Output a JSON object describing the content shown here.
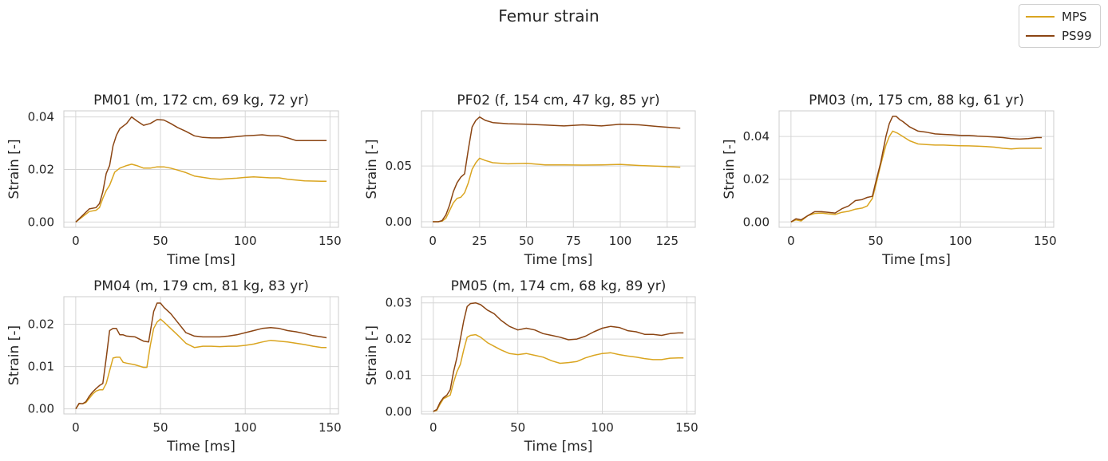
{
  "figure_title": "Femur strain",
  "legend": [
    {
      "label": "MPS",
      "color": "#DAA520"
    },
    {
      "label": "PS99",
      "color": "#8B4513"
    }
  ],
  "chart_data": [
    {
      "type": "line",
      "title": "PM01 (m, 172 cm, 69 kg, 72 yr)",
      "xlabel": "Time [ms]",
      "ylabel": "Strain [-]",
      "xlim": [
        -7,
        155
      ],
      "ylim": [
        -0.002,
        0.0423
      ],
      "xticks": [
        0,
        50,
        100,
        150
      ],
      "xtick_labels": [
        "0",
        "50",
        "100",
        "150"
      ],
      "yticks": [
        0,
        0.02,
        0.04
      ],
      "ytick_labels": [
        "0.00",
        "0.02",
        "0.04"
      ],
      "grid": true,
      "series": [
        {
          "name": "MPS",
          "color": "#DAA520",
          "x": [
            0,
            4,
            8,
            12,
            14,
            16,
            18,
            20,
            23,
            26,
            30,
            33,
            36,
            40,
            44,
            48,
            52,
            56,
            60,
            65,
            70,
            75,
            80,
            85,
            90,
            95,
            100,
            105,
            110,
            115,
            120,
            125,
            130,
            135,
            140,
            145,
            148
          ],
          "y": [
            0,
            0.002,
            0.004,
            0.0045,
            0.0055,
            0.009,
            0.012,
            0.014,
            0.019,
            0.0205,
            0.0215,
            0.022,
            0.0215,
            0.0205,
            0.0205,
            0.021,
            0.021,
            0.0205,
            0.0198,
            0.0188,
            0.0175,
            0.017,
            0.0165,
            0.0163,
            0.0165,
            0.0167,
            0.017,
            0.0172,
            0.017,
            0.0168,
            0.0168,
            0.0163,
            0.016,
            0.0157,
            0.0156,
            0.0155,
            0.0155
          ]
        },
        {
          "name": "PS99",
          "color": "#8B4513",
          "x": [
            0,
            4,
            8,
            12,
            14,
            16,
            18,
            20,
            22,
            24,
            26,
            30,
            33,
            36,
            40,
            44,
            48,
            52,
            56,
            60,
            65,
            70,
            75,
            80,
            85,
            90,
            95,
            100,
            105,
            110,
            115,
            120,
            125,
            130,
            135,
            140,
            145,
            148
          ],
          "y": [
            0,
            0.0025,
            0.005,
            0.0055,
            0.007,
            0.0115,
            0.0185,
            0.0215,
            0.029,
            0.033,
            0.0355,
            0.0375,
            0.04,
            0.0385,
            0.0368,
            0.0375,
            0.039,
            0.0388,
            0.0375,
            0.036,
            0.0345,
            0.0328,
            0.0322,
            0.032,
            0.032,
            0.0322,
            0.0325,
            0.0328,
            0.033,
            0.0332,
            0.0328,
            0.0328,
            0.032,
            0.031,
            0.031,
            0.031,
            0.031,
            0.031
          ]
        }
      ]
    },
    {
      "type": "line",
      "title": "PF02 (f, 154 cm, 47 kg, 85 yr)",
      "xlabel": "Time [ms]",
      "ylabel": "Strain [-]",
      "xlim": [
        -6,
        140
      ],
      "ylim": [
        -0.005,
        0.0995
      ],
      "xticks": [
        0,
        25,
        50,
        75,
        100,
        125
      ],
      "xtick_labels": [
        "0",
        "25",
        "50",
        "75",
        "100",
        "125"
      ],
      "yticks": [
        0,
        0.05
      ],
      "ytick_labels": [
        "0.00",
        "0.05"
      ],
      "grid": true,
      "series": [
        {
          "name": "MPS",
          "color": "#DAA520",
          "x": [
            0,
            3,
            5,
            7,
            9,
            11,
            13,
            15,
            17,
            19,
            21,
            23,
            25,
            28,
            32,
            40,
            50,
            60,
            70,
            80,
            90,
            100,
            110,
            120,
            132
          ],
          "y": [
            0,
            0.0,
            0.0005,
            0.003,
            0.01,
            0.017,
            0.021,
            0.022,
            0.026,
            0.035,
            0.047,
            0.053,
            0.057,
            0.055,
            0.053,
            0.052,
            0.0525,
            0.051,
            0.051,
            0.0508,
            0.051,
            0.0515,
            0.0505,
            0.0498,
            0.049
          ]
        },
        {
          "name": "PS99",
          "color": "#8B4513",
          "x": [
            0,
            3,
            5,
            7,
            9,
            11,
            13,
            15,
            17,
            19,
            21,
            23,
            25,
            28,
            32,
            40,
            50,
            60,
            70,
            80,
            90,
            100,
            110,
            120,
            132
          ],
          "y": [
            0,
            0.0,
            0.001,
            0.006,
            0.015,
            0.027,
            0.035,
            0.04,
            0.043,
            0.065,
            0.085,
            0.091,
            0.094,
            0.091,
            0.089,
            0.088,
            0.0875,
            0.0868,
            0.086,
            0.087,
            0.086,
            0.0875,
            0.087,
            0.0855,
            0.084
          ]
        }
      ]
    },
    {
      "type": "line",
      "title": "PM03 (m, 175 cm, 88 kg, 61 yr)",
      "xlabel": "Time [ms]",
      "ylabel": "Strain [-]",
      "xlim": [
        -7,
        155
      ],
      "ylim": [
        -0.0025,
        0.052
      ],
      "xticks": [
        0,
        50,
        100,
        150
      ],
      "xtick_labels": [
        "0",
        "50",
        "100",
        "150"
      ],
      "yticks": [
        0,
        0.02,
        0.04
      ],
      "ytick_labels": [
        "0.00",
        "0.02",
        "0.04"
      ],
      "grid": true,
      "series": [
        {
          "name": "MPS",
          "color": "#DAA520",
          "x": [
            0,
            3,
            6,
            10,
            14,
            18,
            22,
            26,
            30,
            34,
            38,
            42,
            45,
            48,
            50,
            53,
            56,
            58,
            60,
            63,
            66,
            70,
            75,
            80,
            85,
            90,
            95,
            100,
            105,
            110,
            115,
            120,
            125,
            130,
            135,
            140,
            145,
            148
          ],
          "y": [
            0,
            0.001,
            0.0005,
            0.003,
            0.004,
            0.0042,
            0.0038,
            0.0035,
            0.0045,
            0.005,
            0.006,
            0.0065,
            0.0075,
            0.011,
            0.017,
            0.027,
            0.036,
            0.04,
            0.0425,
            0.0415,
            0.04,
            0.038,
            0.0365,
            0.0362,
            0.036,
            0.036,
            0.0358,
            0.0357,
            0.0356,
            0.0355,
            0.0353,
            0.035,
            0.0345,
            0.0342,
            0.0345,
            0.0345,
            0.0345,
            0.0345
          ]
        },
        {
          "name": "PS99",
          "color": "#8B4513",
          "x": [
            0,
            3,
            6,
            10,
            14,
            18,
            22,
            26,
            30,
            34,
            38,
            42,
            45,
            48,
            50,
            53,
            56,
            58,
            60,
            62,
            64,
            66,
            70,
            75,
            80,
            85,
            90,
            95,
            100,
            105,
            110,
            115,
            120,
            125,
            130,
            135,
            140,
            145,
            148
          ],
          "y": [
            0,
            0.0015,
            0.001,
            0.003,
            0.0048,
            0.0048,
            0.0045,
            0.0042,
            0.0062,
            0.0075,
            0.01,
            0.0105,
            0.0115,
            0.012,
            0.0185,
            0.028,
            0.04,
            0.046,
            0.0495,
            0.0495,
            0.048,
            0.047,
            0.0445,
            0.0425,
            0.042,
            0.0412,
            0.041,
            0.0408,
            0.0405,
            0.0405,
            0.0402,
            0.04,
            0.0398,
            0.0395,
            0.039,
            0.0388,
            0.039,
            0.0395,
            0.0395
          ]
        }
      ]
    },
    {
      "type": "line",
      "title": "PM04 (m, 179 cm, 81 kg, 83 yr)",
      "xlabel": "Time [ms]",
      "ylabel": "Strain [-]",
      "xlim": [
        -7,
        155
      ],
      "ylim": [
        -0.0012,
        0.0265
      ],
      "xticks": [
        0,
        50,
        100,
        150
      ],
      "xtick_labels": [
        "0",
        "50",
        "100",
        "150"
      ],
      "yticks": [
        0,
        0.01,
        0.02
      ],
      "ytick_labels": [
        "0.00",
        "0.01",
        "0.02"
      ],
      "grid": true,
      "series": [
        {
          "name": "MPS",
          "color": "#DAA520",
          "x": [
            0,
            2,
            4,
            6,
            8,
            10,
            12,
            14,
            16,
            18,
            20,
            22,
            24,
            26,
            28,
            30,
            35,
            40,
            42,
            44,
            46,
            48,
            50,
            52,
            56,
            60,
            65,
            70,
            75,
            80,
            85,
            90,
            95,
            100,
            105,
            110,
            115,
            120,
            125,
            130,
            135,
            140,
            145,
            148
          ],
          "y": [
            0,
            0.0012,
            0.0012,
            0.0015,
            0.0025,
            0.0035,
            0.0042,
            0.0045,
            0.0045,
            0.006,
            0.009,
            0.012,
            0.0122,
            0.0122,
            0.011,
            0.0108,
            0.0104,
            0.0098,
            0.0098,
            0.015,
            0.019,
            0.0205,
            0.0212,
            0.0205,
            0.019,
            0.0175,
            0.0155,
            0.0145,
            0.0148,
            0.0148,
            0.0147,
            0.0148,
            0.0148,
            0.015,
            0.0153,
            0.0158,
            0.0162,
            0.016,
            0.0158,
            0.0155,
            0.0152,
            0.0148,
            0.0145,
            0.0145
          ]
        },
        {
          "name": "PS99",
          "color": "#8B4513",
          "x": [
            0,
            2,
            4,
            6,
            8,
            10,
            12,
            14,
            16,
            18,
            20,
            22,
            24,
            26,
            28,
            30,
            35,
            40,
            43,
            46,
            48,
            50,
            52,
            56,
            60,
            65,
            70,
            75,
            80,
            85,
            90,
            95,
            100,
            105,
            110,
            115,
            120,
            125,
            130,
            135,
            140,
            145,
            148
          ],
          "y": [
            0,
            0.0013,
            0.0012,
            0.0017,
            0.003,
            0.004,
            0.0048,
            0.0055,
            0.006,
            0.012,
            0.0185,
            0.019,
            0.019,
            0.0175,
            0.0175,
            0.0172,
            0.017,
            0.016,
            0.0158,
            0.023,
            0.025,
            0.025,
            0.024,
            0.0225,
            0.0205,
            0.018,
            0.0172,
            0.017,
            0.017,
            0.017,
            0.0172,
            0.0175,
            0.018,
            0.0185,
            0.019,
            0.0192,
            0.019,
            0.0185,
            0.0182,
            0.0178,
            0.0173,
            0.017,
            0.0168
          ]
        }
      ]
    },
    {
      "type": "line",
      "title": "PM05 (m, 174 cm, 68 kg, 89 yr)",
      "xlabel": "Time [ms]",
      "ylabel": "Strain [-]",
      "xlim": [
        -7,
        155
      ],
      "ylim": [
        -0.0007,
        0.0317
      ],
      "xticks": [
        0,
        50,
        100,
        150
      ],
      "xtick_labels": [
        "0",
        "50",
        "100",
        "150"
      ],
      "yticks": [
        0,
        0.01,
        0.02,
        0.03
      ],
      "ytick_labels": [
        "0.00",
        "0.01",
        "0.02",
        "0.03"
      ],
      "grid": true,
      "series": [
        {
          "name": "MPS",
          "color": "#DAA520",
          "x": [
            0,
            2,
            4,
            6,
            8,
            10,
            12,
            14,
            16,
            18,
            20,
            22,
            25,
            28,
            32,
            36,
            40,
            45,
            50,
            55,
            60,
            65,
            70,
            75,
            80,
            85,
            90,
            95,
            100,
            105,
            110,
            115,
            120,
            125,
            130,
            135,
            140,
            145,
            148
          ],
          "y": [
            0,
            0.0003,
            0.002,
            0.0035,
            0.004,
            0.0045,
            0.008,
            0.011,
            0.013,
            0.017,
            0.0205,
            0.021,
            0.0212,
            0.0205,
            0.019,
            0.018,
            0.017,
            0.016,
            0.0157,
            0.016,
            0.0155,
            0.015,
            0.014,
            0.0133,
            0.0135,
            0.0138,
            0.0148,
            0.0155,
            0.016,
            0.0162,
            0.0157,
            0.0153,
            0.015,
            0.0146,
            0.0143,
            0.0143,
            0.0147,
            0.0148,
            0.0148
          ]
        },
        {
          "name": "PS99",
          "color": "#8B4513",
          "x": [
            0,
            2,
            4,
            6,
            8,
            10,
            12,
            14,
            16,
            18,
            20,
            22,
            25,
            28,
            32,
            36,
            40,
            45,
            50,
            55,
            60,
            65,
            70,
            75,
            80,
            85,
            90,
            95,
            100,
            105,
            110,
            115,
            120,
            125,
            130,
            135,
            140,
            145,
            148
          ],
          "y": [
            0,
            0.0005,
            0.0025,
            0.0038,
            0.0045,
            0.006,
            0.011,
            0.015,
            0.02,
            0.025,
            0.029,
            0.0298,
            0.03,
            0.0295,
            0.028,
            0.027,
            0.0252,
            0.0235,
            0.0225,
            0.023,
            0.0225,
            0.0215,
            0.021,
            0.0205,
            0.0198,
            0.02,
            0.0208,
            0.022,
            0.023,
            0.0235,
            0.0232,
            0.0223,
            0.022,
            0.0213,
            0.0213,
            0.021,
            0.0215,
            0.0217,
            0.0217
          ]
        }
      ]
    }
  ]
}
